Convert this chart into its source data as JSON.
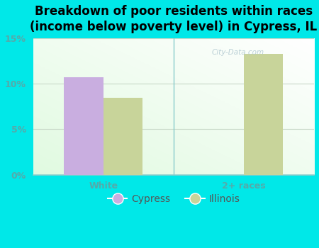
{
  "title": "Breakdown of poor residents within races\n(income below poverty level) in Cypress, IL",
  "categories": [
    "White",
    "2+ races"
  ],
  "cypress_values": [
    10.7,
    0.0
  ],
  "illinois_values": [
    8.5,
    13.3
  ],
  "cypress_color": "#c9aee0",
  "illinois_color": "#c8d49a",
  "background_color": "#00e8e8",
  "axis_label_color": "#55aaaa",
  "title_color": "#000000",
  "ylim": [
    0,
    15
  ],
  "yticks": [
    0,
    5,
    10,
    15
  ],
  "ytick_labels": [
    "0%",
    "5%",
    "10%",
    "15%"
  ],
  "bar_width": 0.28,
  "legend_labels": [
    "Cypress",
    "Illinois"
  ],
  "watermark": "City-Data.com",
  "title_fontsize": 12,
  "tick_fontsize": 9,
  "legend_fontsize": 10
}
